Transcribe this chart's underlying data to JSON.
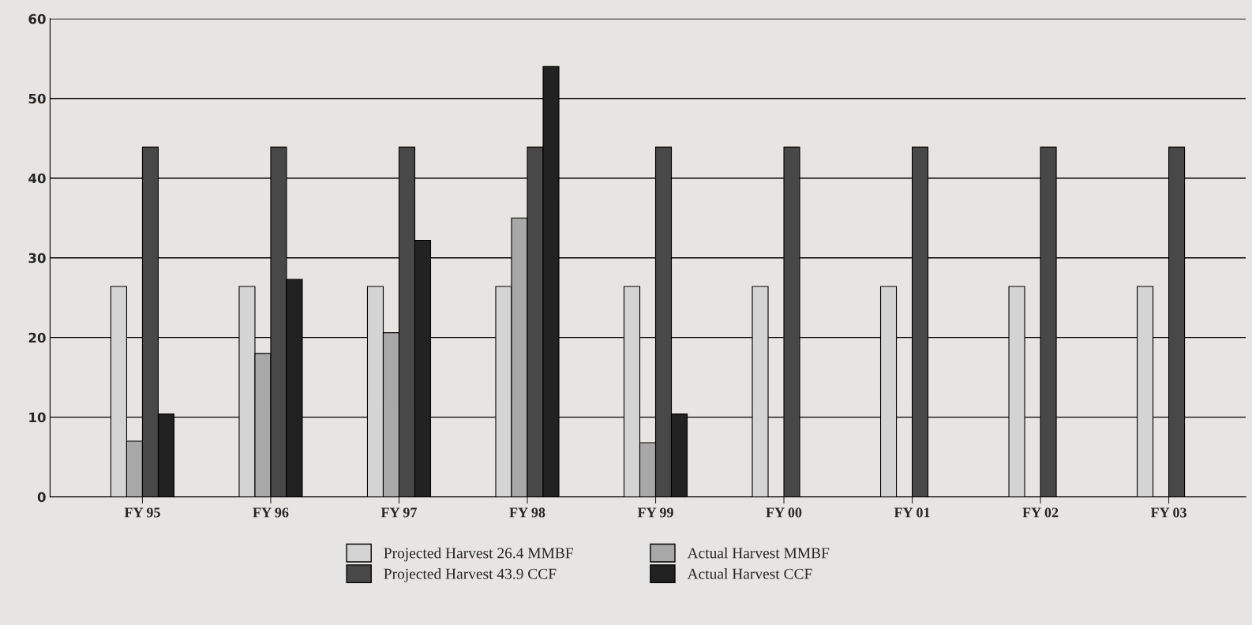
{
  "chart_data": {
    "type": "bar",
    "categories": [
      "FY 95",
      "FY 96",
      "FY 97",
      "FY 98",
      "FY 99",
      "FY 00",
      "FY 01",
      "FY 02",
      "FY 03"
    ],
    "series": [
      {
        "name": "Projected Harvest 26.4 MMBF",
        "color": "#d4d4d4",
        "values": [
          26.4,
          26.4,
          26.4,
          26.4,
          26.4,
          26.4,
          26.4,
          26.4,
          26.4
        ]
      },
      {
        "name": "Actual Harvest MMBF",
        "color": "#a8a8a8",
        "values": [
          7,
          18,
          20.6,
          35,
          6.8,
          null,
          null,
          null,
          null
        ]
      },
      {
        "name": "Projected Harvest 43.9 CCF",
        "color": "#484848",
        "values": [
          43.9,
          43.9,
          43.9,
          43.9,
          43.9,
          43.9,
          43.9,
          43.9,
          43.9
        ]
      },
      {
        "name": "Actual Harvest CCF",
        "color": "#222222",
        "values": [
          10.4,
          27.3,
          32.2,
          54,
          10.4,
          null,
          null,
          null,
          null
        ]
      }
    ],
    "ylim": [
      0,
      60
    ],
    "yticks": [
      0,
      10,
      20,
      30,
      40,
      50,
      60
    ],
    "grid": "y",
    "legend": "bottom"
  }
}
